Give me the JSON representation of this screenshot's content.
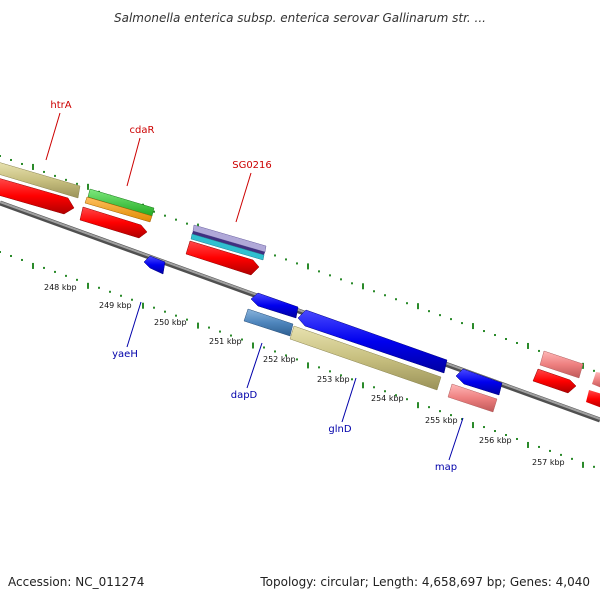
{
  "header": {
    "title": "Salmonella enterica subsp. enterica serovar Gallinarum str. ..."
  },
  "footer": {
    "accession": "Accession: NC_011274",
    "summary": "Topology: circular; Length: 4,658,697 bp; Genes: 4,040"
  },
  "colors": {
    "backbone": "#808080",
    "tick": "#2a8a2a",
    "forward_label": "#cc0000",
    "reverse_label": "#0000aa"
  },
  "scale": {
    "unit": "kbp",
    "labels": [
      "248 kbp",
      "249 kbp",
      "250 kbp",
      "251 kbp",
      "252 kbp",
      "253 kbp",
      "254 kbp",
      "255 kbp",
      "256 kbp",
      "257 kbp"
    ]
  },
  "genes_forward": [
    {
      "name": "htrA",
      "label": "htrA"
    },
    {
      "name": "cdaR",
      "label": "cdaR"
    },
    {
      "name": "SG0216",
      "label": "SG0216"
    }
  ],
  "genes_reverse": [
    {
      "name": "yaeH",
      "label": "yaeH"
    },
    {
      "name": "dapD",
      "label": "dapD"
    },
    {
      "name": "glnD",
      "label": "glnD"
    },
    {
      "name": "map",
      "label": "map"
    }
  ]
}
